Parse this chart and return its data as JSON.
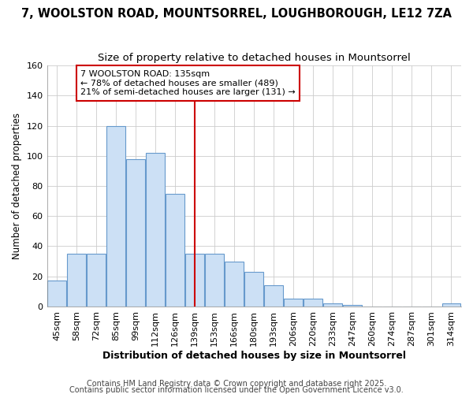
{
  "title": "7, WOOLSTON ROAD, MOUNTSORREL, LOUGHBOROUGH, LE12 7ZA",
  "subtitle": "Size of property relative to detached houses in Mountsorrel",
  "xlabel": "Distribution of detached houses by size in Mountsorrel",
  "ylabel": "Number of detached properties",
  "bins": [
    "45sqm",
    "58sqm",
    "72sqm",
    "85sqm",
    "99sqm",
    "112sqm",
    "126sqm",
    "139sqm",
    "153sqm",
    "166sqm",
    "180sqm",
    "193sqm",
    "206sqm",
    "220sqm",
    "233sqm",
    "247sqm",
    "260sqm",
    "274sqm",
    "287sqm",
    "301sqm",
    "314sqm"
  ],
  "values": [
    17,
    35,
    35,
    120,
    98,
    102,
    75,
    35,
    35,
    30,
    23,
    14,
    5,
    5,
    2,
    1,
    0,
    0,
    0,
    0,
    2
  ],
  "bar_color": "#cce0f5",
  "bar_edgecolor": "#6699cc",
  "vline_x": 7.0,
  "vline_color": "#cc0000",
  "ylim": [
    0,
    160
  ],
  "yticks": [
    0,
    20,
    40,
    60,
    80,
    100,
    120,
    140,
    160
  ],
  "annotation_text": "7 WOOLSTON ROAD: 135sqm\n← 78% of detached houses are smaller (489)\n21% of semi-detached houses are larger (131) →",
  "annotation_box_edgecolor": "#cc0000",
  "annotation_box_facecolor": "#ffffff",
  "footer_line1": "Contains HM Land Registry data © Crown copyright and database right 2025.",
  "footer_line2": "Contains public sector information licensed under the Open Government Licence v3.0.",
  "background_color": "#ffffff",
  "plot_background": "#ffffff",
  "grid_color": "#cccccc",
  "title_fontsize": 10.5,
  "subtitle_fontsize": 9.5,
  "ylabel_fontsize": 8.5,
  "xlabel_fontsize": 9,
  "tick_fontsize": 8,
  "footer_fontsize": 7,
  "annotation_fontsize": 8
}
